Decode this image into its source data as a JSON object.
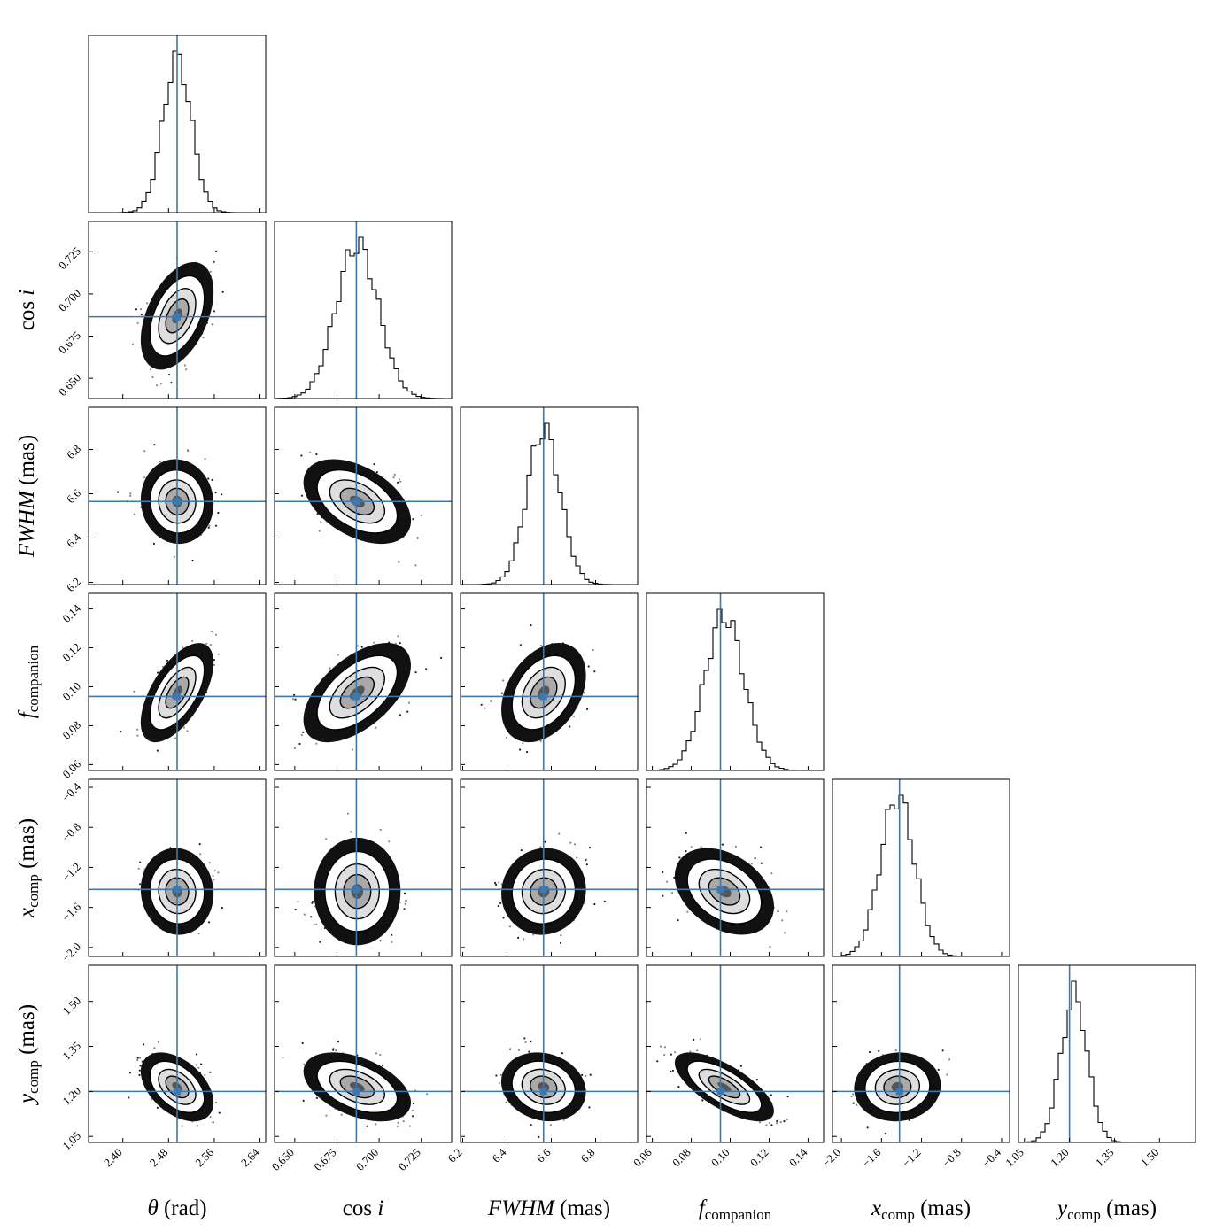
{
  "chart_data": {
    "type": "corner",
    "parameters": [
      {
        "key": "theta",
        "label_main": "θ",
        "label_italic": true,
        "label_sub": "",
        "label_tail": " (rad)",
        "range": [
          2.34,
          2.65
        ],
        "ticks": [
          "2.40",
          "2.48",
          "2.56",
          "2.64"
        ],
        "tick_values": [
          2.4,
          2.48,
          2.56,
          2.64
        ],
        "truth": 2.495,
        "mean": 2.495,
        "std": 0.025
      },
      {
        "key": "cos_i",
        "label_main": "cos ",
        "label_italic": false,
        "label_sub": "",
        "label_tail": "i",
        "range": [
          0.638,
          0.743
        ],
        "ticks": [
          "0.650",
          "0.675",
          "0.700",
          "0.725"
        ],
        "tick_values": [
          0.65,
          0.675,
          0.7,
          0.725
        ],
        "truth": 0.6865,
        "mean": 0.687,
        "std": 0.0125
      },
      {
        "key": "fwhm",
        "label_main": "FWHM",
        "label_italic": true,
        "label_sub": "",
        "label_tail": " (mas)",
        "range": [
          6.19,
          6.99
        ],
        "ticks": [
          "6.2",
          "6.4",
          "6.6",
          "6.8"
        ],
        "tick_values": [
          6.2,
          6.4,
          6.6,
          6.8
        ],
        "truth": 6.565,
        "mean": 6.565,
        "std": 0.075
      },
      {
        "key": "f_companion",
        "label_main": "f",
        "label_italic": true,
        "label_sub": "companion",
        "label_tail": "",
        "range": [
          0.057,
          0.148
        ],
        "ticks": [
          "0.06",
          "0.08",
          "0.10",
          "0.12",
          "0.14"
        ],
        "tick_values": [
          0.06,
          0.08,
          0.1,
          0.12,
          0.14
        ],
        "truth": 0.095,
        "mean": 0.097,
        "std": 0.01
      },
      {
        "key": "x_comp",
        "label_main": "x",
        "label_italic": true,
        "label_sub": "comp",
        "label_tail": " (mas)",
        "range": [
          -2.09,
          -0.32
        ],
        "ticks": [
          "−2.0",
          "−1.6",
          "−1.2",
          "−0.8",
          "−0.4"
        ],
        "tick_values": [
          -2.0,
          -1.6,
          -1.2,
          -0.8,
          -0.4
        ],
        "truth": -1.42,
        "mean": -1.44,
        "std": 0.17
      },
      {
        "key": "y_comp",
        "label_main": "y",
        "label_italic": true,
        "label_sub": "comp",
        "label_tail": " (mas)",
        "range": [
          1.03,
          1.62
        ],
        "ticks": [
          "1.05",
          "1.20",
          "1.35",
          "1.50"
        ],
        "tick_values": [
          1.05,
          1.2,
          1.35,
          1.5
        ],
        "truth": 1.2,
        "mean": 1.215,
        "std": 0.045
      }
    ],
    "correlations": {
      "1,0": 0.45,
      "2,0": -0.05,
      "2,1": -0.45,
      "3,0": 0.6,
      "3,1": 0.55,
      "3,2": 0.35,
      "4,0": -0.05,
      "4,1": 0.0,
      "4,2": 0.05,
      "4,3": -0.35,
      "5,0": -0.45,
      "5,1": -0.45,
      "5,2": -0.15,
      "5,3": -0.7,
      "5,4": 0.05
    },
    "grid": false,
    "marker_color": "#3b79b0"
  }
}
